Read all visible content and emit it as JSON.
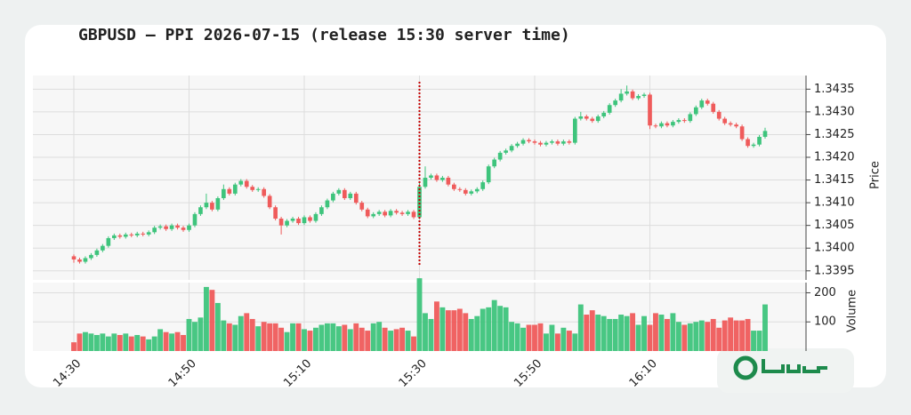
{
  "chart_data": {
    "type": "candlestick",
    "title": "GBPUSD — PPI 2026-07-15 (release 15:30 server time)",
    "y_label": "Price",
    "y2_label": "Volume",
    "event_marker": "15:30",
    "up_color": "#3ec47c",
    "down_color": "#ef5b5b",
    "marker_color": "#c40000",
    "grid": true,
    "categories": [
      "14:30",
      "14:31",
      "14:32",
      "14:33",
      "14:34",
      "14:35",
      "14:36",
      "14:37",
      "14:38",
      "14:39",
      "14:40",
      "14:41",
      "14:42",
      "14:43",
      "14:44",
      "14:45",
      "14:46",
      "14:47",
      "14:48",
      "14:49",
      "14:50",
      "14:51",
      "14:52",
      "14:53",
      "14:54",
      "14:55",
      "14:56",
      "14:57",
      "14:58",
      "14:59",
      "15:00",
      "15:01",
      "15:02",
      "15:03",
      "15:04",
      "15:05",
      "15:06",
      "15:07",
      "15:08",
      "15:09",
      "15:10",
      "15:11",
      "15:12",
      "15:13",
      "15:14",
      "15:15",
      "15:16",
      "15:17",
      "15:18",
      "15:19",
      "15:20",
      "15:21",
      "15:22",
      "15:23",
      "15:24",
      "15:25",
      "15:26",
      "15:27",
      "15:28",
      "15:29",
      "15:30",
      "15:31",
      "15:32",
      "15:33",
      "15:34",
      "15:35",
      "15:36",
      "15:37",
      "15:38",
      "15:39",
      "15:40",
      "15:41",
      "15:42",
      "15:43",
      "15:44",
      "15:45",
      "15:46",
      "15:47",
      "15:48",
      "15:49",
      "15:50",
      "15:51",
      "15:52",
      "15:53",
      "15:54",
      "15:55",
      "15:56",
      "15:57",
      "15:58",
      "15:59",
      "16:00",
      "16:01",
      "16:02",
      "16:03",
      "16:04",
      "16:05",
      "16:06",
      "16:07",
      "16:08",
      "16:09",
      "16:10",
      "16:11",
      "16:12",
      "16:13",
      "16:14",
      "16:15",
      "16:16",
      "16:17",
      "16:18",
      "16:19",
      "16:20",
      "16:21",
      "16:22",
      "16:23",
      "16:24",
      "16:25",
      "16:26",
      "16:27",
      "16:28",
      "16:29",
      "16:30"
    ],
    "open": [
      1.33982,
      1.33975,
      1.3397,
      1.33978,
      1.33985,
      1.33995,
      1.34005,
      1.34022,
      1.34028,
      1.34025,
      1.3403,
      1.34028,
      1.34032,
      1.3403,
      1.34035,
      1.34045,
      1.34048,
      1.34042,
      1.3405,
      1.34045,
      1.3404,
      1.3405,
      1.34075,
      1.3409,
      1.341,
      1.34085,
      1.3411,
      1.3413,
      1.3412,
      1.3414,
      1.34148,
      1.34135,
      1.34128,
      1.3413,
      1.34115,
      1.3409,
      1.34065,
      1.3405,
      1.3406,
      1.34065,
      1.34055,
      1.34068,
      1.3406,
      1.34075,
      1.3409,
      1.34105,
      1.3412,
      1.34128,
      1.3411,
      1.3412,
      1.341,
      1.34085,
      1.3407,
      1.34075,
      1.3408,
      1.34072,
      1.34082,
      1.34078,
      1.34075,
      1.3408,
      1.34068,
      1.34135,
      1.34155,
      1.3416,
      1.3415,
      1.34155,
      1.3414,
      1.3413,
      1.34128,
      1.3412,
      1.34125,
      1.3413,
      1.34145,
      1.3418,
      1.34195,
      1.3421,
      1.34215,
      1.34225,
      1.3423,
      1.34238,
      1.34235,
      1.34232,
      1.34228,
      1.34232,
      1.34235,
      1.3423,
      1.34235,
      1.34232,
      1.34285,
      1.3429,
      1.34285,
      1.3428,
      1.3429,
      1.34298,
      1.34315,
      1.34325,
      1.3434,
      1.34345,
      1.3433,
      1.34335,
      1.34338,
      1.3427,
      1.34268,
      1.34275,
      1.3427,
      1.34278,
      1.34282,
      1.3428,
      1.34295,
      1.3431,
      1.34325,
      1.34318,
      1.343,
      1.34285,
      1.34275,
      1.34272,
      1.34268,
      1.3424,
      1.34225,
      1.34228,
      1.34245
    ],
    "high": [
      1.33986,
      1.33979,
      1.33982,
      1.33989,
      1.33999,
      1.34009,
      1.34026,
      1.34032,
      1.34032,
      1.34034,
      1.34034,
      1.34036,
      1.34036,
      1.34039,
      1.34049,
      1.34052,
      1.34052,
      1.34054,
      1.34054,
      1.34049,
      1.34054,
      1.34079,
      1.34094,
      1.3412,
      1.34104,
      1.34114,
      1.3414,
      1.34134,
      1.34144,
      1.34152,
      1.34152,
      1.34139,
      1.34134,
      1.34134,
      1.34119,
      1.34094,
      1.34069,
      1.34064,
      1.34069,
      1.34069,
      1.34072,
      1.34072,
      1.34079,
      1.34094,
      1.34109,
      1.34124,
      1.34132,
      1.34132,
      1.34124,
      1.34124,
      1.34104,
      1.34089,
      1.34079,
      1.34084,
      1.34084,
      1.34086,
      1.34086,
      1.34082,
      1.34084,
      1.34084,
      1.34145,
      1.3418,
      1.34164,
      1.34164,
      1.34159,
      1.34159,
      1.34144,
      1.34134,
      1.34132,
      1.34129,
      1.34134,
      1.34149,
      1.34184,
      1.34199,
      1.34214,
      1.34219,
      1.34229,
      1.34234,
      1.34242,
      1.34242,
      1.34239,
      1.34236,
      1.34236,
      1.34239,
      1.34239,
      1.34239,
      1.34239,
      1.34289,
      1.343,
      1.34294,
      1.34289,
      1.34294,
      1.34302,
      1.34319,
      1.34329,
      1.3435,
      1.34358,
      1.34349,
      1.34339,
      1.34342,
      1.34342,
      1.34274,
      1.34279,
      1.34279,
      1.34282,
      1.34286,
      1.34286,
      1.34299,
      1.34314,
      1.34329,
      1.34329,
      1.34322,
      1.34304,
      1.34289,
      1.34279,
      1.34276,
      1.34272,
      1.34244,
      1.34232,
      1.34249,
      1.34265
    ],
    "low": [
      1.33968,
      1.33966,
      1.33966,
      1.33974,
      1.33981,
      1.33991,
      1.34001,
      1.34018,
      1.34021,
      1.34021,
      1.34024,
      1.34024,
      1.34026,
      1.34026,
      1.34031,
      1.34041,
      1.34038,
      1.34038,
      1.34041,
      1.34036,
      1.34036,
      1.34046,
      1.34071,
      1.34086,
      1.34081,
      1.34081,
      1.34106,
      1.34116,
      1.34116,
      1.34136,
      1.34131,
      1.34124,
      1.34124,
      1.34111,
      1.34086,
      1.34061,
      1.3403,
      1.34046,
      1.34056,
      1.34051,
      1.34051,
      1.34056,
      1.34056,
      1.34071,
      1.34086,
      1.34101,
      1.34116,
      1.34106,
      1.34106,
      1.34096,
      1.34081,
      1.34066,
      1.34066,
      1.34071,
      1.34068,
      1.34068,
      1.34074,
      1.34071,
      1.34071,
      1.34064,
      1.34064,
      1.34131,
      1.34151,
      1.34146,
      1.34146,
      1.34136,
      1.34126,
      1.34124,
      1.34116,
      1.34116,
      1.34121,
      1.34126,
      1.34141,
      1.34176,
      1.34191,
      1.34206,
      1.34211,
      1.34221,
      1.34226,
      1.34231,
      1.34228,
      1.34224,
      1.34224,
      1.34228,
      1.34226,
      1.34226,
      1.34228,
      1.34228,
      1.34281,
      1.34281,
      1.34276,
      1.34276,
      1.34286,
      1.34294,
      1.34311,
      1.34321,
      1.34336,
      1.34326,
      1.34326,
      1.34331,
      1.34262,
      1.34264,
      1.34264,
      1.34266,
      1.34266,
      1.34274,
      1.34276,
      1.34276,
      1.34291,
      1.34306,
      1.34314,
      1.34296,
      1.34281,
      1.34271,
      1.34268,
      1.34264,
      1.34236,
      1.34221,
      1.34221,
      1.34224,
      1.34241
    ],
    "close": [
      1.33975,
      1.3397,
      1.33978,
      1.33985,
      1.33995,
      1.34005,
      1.34022,
      1.34028,
      1.34025,
      1.3403,
      1.34028,
      1.34032,
      1.3403,
      1.34035,
      1.34045,
      1.34048,
      1.34042,
      1.3405,
      1.34045,
      1.3404,
      1.3405,
      1.34075,
      1.3409,
      1.341,
      1.34085,
      1.3411,
      1.3413,
      1.3412,
      1.3414,
      1.34148,
      1.34135,
      1.34128,
      1.3413,
      1.34115,
      1.3409,
      1.34065,
      1.3405,
      1.3406,
      1.34065,
      1.34055,
      1.34068,
      1.3406,
      1.34075,
      1.3409,
      1.34105,
      1.3412,
      1.34128,
      1.3411,
      1.3412,
      1.341,
      1.34085,
      1.3407,
      1.34075,
      1.3408,
      1.34072,
      1.34082,
      1.34078,
      1.34075,
      1.3408,
      1.34068,
      1.34135,
      1.34155,
      1.3416,
      1.3415,
      1.34155,
      1.3414,
      1.3413,
      1.34128,
      1.3412,
      1.34125,
      1.3413,
      1.34145,
      1.3418,
      1.34195,
      1.3421,
      1.34215,
      1.34225,
      1.3423,
      1.34238,
      1.34235,
      1.34232,
      1.34228,
      1.34232,
      1.34235,
      1.3423,
      1.34235,
      1.34232,
      1.34285,
      1.3429,
      1.34285,
      1.3428,
      1.3429,
      1.34298,
      1.34315,
      1.34325,
      1.3434,
      1.34345,
      1.3433,
      1.34335,
      1.34338,
      1.3427,
      1.34268,
      1.34275,
      1.3427,
      1.34278,
      1.34282,
      1.3428,
      1.34295,
      1.3431,
      1.34325,
      1.34318,
      1.343,
      1.34285,
      1.34275,
      1.34272,
      1.34268,
      1.3424,
      1.34225,
      1.34228,
      1.34245,
      1.34258
    ],
    "volume": [
      30,
      60,
      65,
      60,
      55,
      60,
      50,
      60,
      55,
      60,
      50,
      55,
      50,
      40,
      50,
      75,
      65,
      60,
      65,
      55,
      110,
      100,
      115,
      220,
      210,
      165,
      105,
      95,
      90,
      120,
      130,
      110,
      85,
      100,
      95,
      95,
      80,
      65,
      95,
      95,
      75,
      70,
      80,
      90,
      95,
      95,
      85,
      90,
      75,
      95,
      80,
      70,
      95,
      100,
      80,
      70,
      75,
      80,
      70,
      50,
      250,
      130,
      110,
      170,
      150,
      140,
      140,
      145,
      130,
      110,
      120,
      145,
      150,
      175,
      155,
      150,
      100,
      95,
      80,
      90,
      90,
      95,
      60,
      90,
      60,
      80,
      70,
      60,
      160,
      125,
      140,
      125,
      120,
      110,
      110,
      125,
      120,
      130,
      90,
      120,
      90,
      130,
      125,
      110,
      130,
      100,
      90,
      95,
      100,
      105,
      100,
      110,
      80,
      105,
      115,
      105,
      105,
      110,
      70,
      70,
      160
    ],
    "ylim": [
      1.3393,
      1.3438
    ],
    "yticks": [
      1.3395,
      {
        "value": 1.34,
        "label": "1.3400"
      },
      1.3405,
      {
        "value": 1.341,
        "label": "1.3410"
      },
      1.3415,
      {
        "value": 1.342,
        "label": "1.3420"
      },
      1.3425,
      {
        "value": 1.343,
        "label": "1.3430"
      },
      1.3435
    ],
    "y2lim": [
      0,
      235
    ],
    "y2ticks": [
      100,
      200
    ],
    "xticks": [
      "14:30",
      "14:50",
      "15:10",
      "15:30",
      "15:50",
      "16:10"
    ]
  }
}
